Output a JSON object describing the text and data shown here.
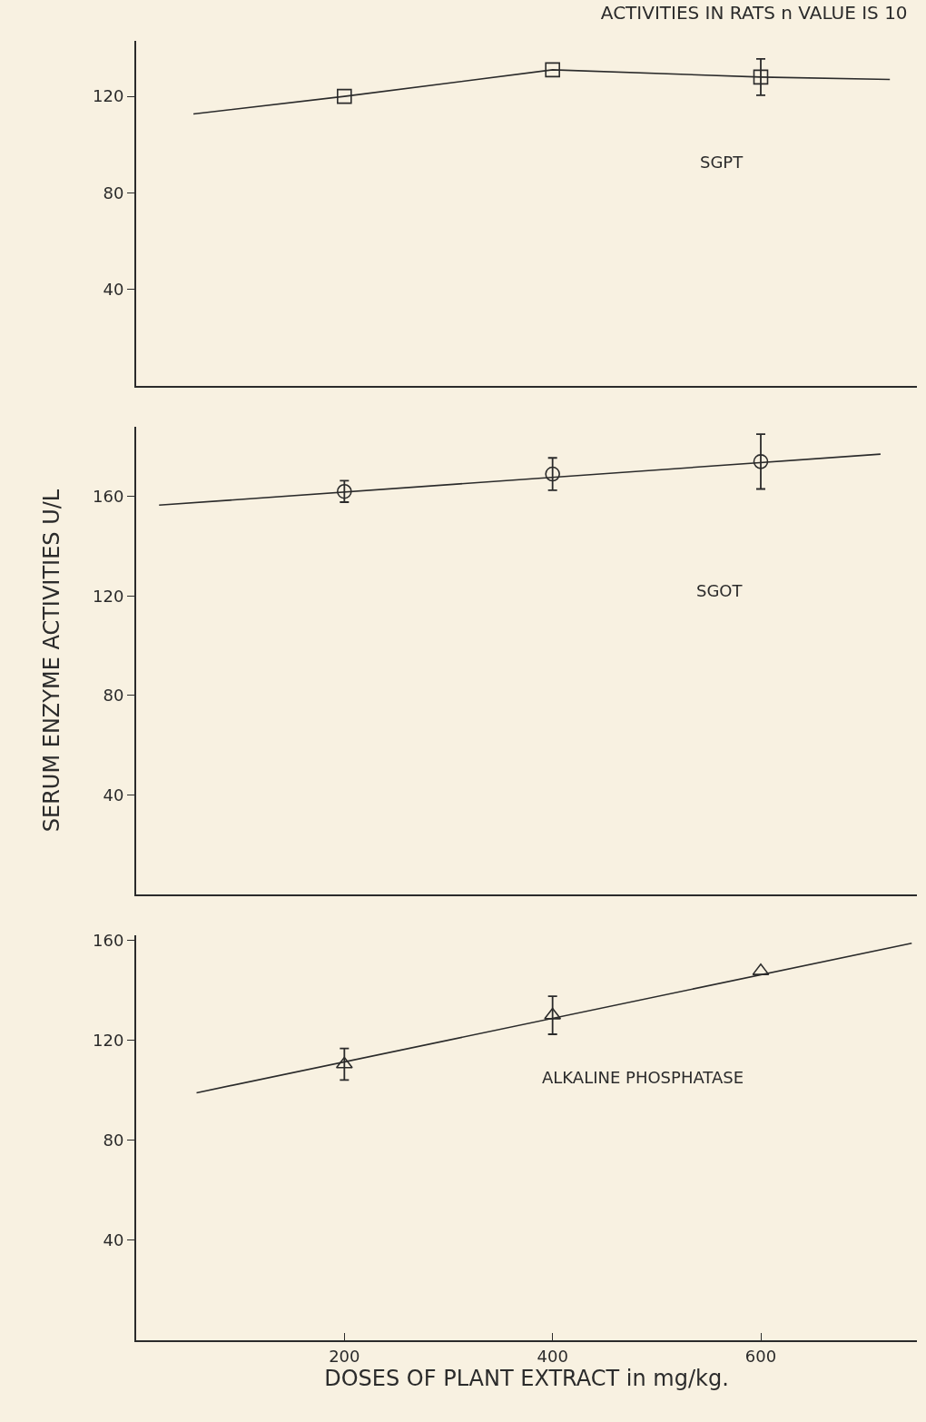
{
  "chart_data": [
    {
      "type": "line",
      "title": "ACTIVITIES IN RATS n VALUE IS 10",
      "annotations": [
        "SGPT"
      ],
      "xlim": [
        0,
        750
      ],
      "ylim": [
        0,
        143
      ],
      "yticks": [
        40,
        80,
        120
      ],
      "tick_labels": "y",
      "series": [
        {
          "color": "#2b2b2b",
          "x": [
            55,
            200,
            400,
            600,
            724
          ],
          "values": [
            112.7,
            120,
            131,
            128,
            127
          ]
        },
        {
          "type": "scatter",
          "color": "#2b2b2b",
          "marker": "square",
          "x": [
            200,
            400,
            600
          ],
          "values": [
            120,
            131,
            128
          ],
          "errors": [
            null,
            null,
            7.5
          ]
        }
      ]
    },
    {
      "type": "line",
      "ylabel": "SERUM ENZYME ACTIVITIES U/L",
      "annotations": [
        "SGOT"
      ],
      "xlim": [
        0,
        750
      ],
      "ylim": [
        0,
        188
      ],
      "yticks": [
        40,
        80,
        120,
        160
      ],
      "tick_labels": "y",
      "series": [
        {
          "color": "#2b2b2b",
          "x": [
            22,
            715
          ],
          "values": [
            156.5,
            177
          ]
        },
        {
          "type": "scatter",
          "color": "#2b2b2b",
          "marker": "circle",
          "x": [
            200,
            400,
            600
          ],
          "values": [
            162,
            169,
            174
          ],
          "errors": [
            4.3,
            6.5,
            11
          ]
        }
      ]
    },
    {
      "type": "line",
      "xlabel": "DOSES OF PLANT EXTRACT in mg/kg.",
      "annotations": [
        "ALKALINE PHOSPHATASE"
      ],
      "xlim": [
        0,
        750
      ],
      "xticks": [
        200,
        400,
        600
      ],
      "ylim": [
        0,
        162
      ],
      "yticks": [
        40,
        80,
        120,
        160
      ],
      "series": [
        {
          "color": "#2b2b2b",
          "x": [
            58,
            745
          ],
          "values": [
            99,
            158.8
          ]
        },
        {
          "type": "scatter",
          "color": "#2b2b2b",
          "marker": "triangle",
          "x": [
            200,
            400,
            600
          ],
          "values": [
            110.4,
            130,
            147.7
          ],
          "errors": [
            6.3,
            7.6,
            null
          ]
        }
      ]
    }
  ]
}
